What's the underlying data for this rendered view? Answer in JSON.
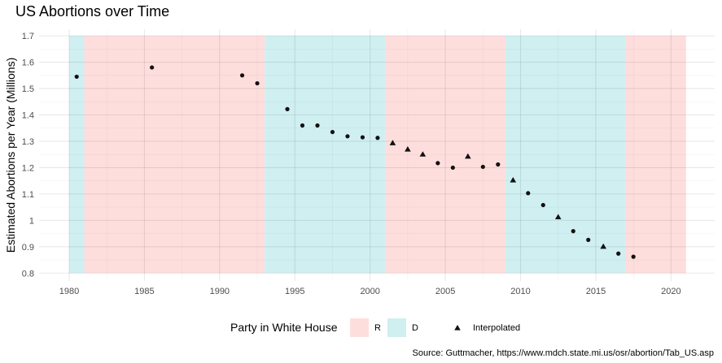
{
  "chart_data": {
    "type": "scatter",
    "title": "US Abortions over Time",
    "xlabel": "",
    "ylabel": "Estimated Abortions per Year (Millions)",
    "caption": "Source: Guttmacher, https://www.mdch.state.mi.us/osr/abortion/Tab_US.asp",
    "xlim": [
      1980,
      2021
    ],
    "ylim": [
      0.8,
      1.7
    ],
    "x_ticks": [
      1980,
      1985,
      1990,
      1995,
      2000,
      2005,
      2010,
      2015,
      2020
    ],
    "y_ticks": [
      0.8,
      0.9,
      1.0,
      1.1,
      1.2,
      1.3,
      1.4,
      1.5,
      1.6,
      1.7
    ],
    "y_tick_labels": [
      "0.8",
      "0.9",
      "1",
      "1.1",
      "1.2",
      "1.3",
      "1.4",
      "1.5",
      "1.6",
      "1.7"
    ],
    "grid": true,
    "legend_position": "bottom",
    "party_periods": [
      {
        "start": 1980,
        "end": 1981,
        "party": "D"
      },
      {
        "start": 1981,
        "end": 1993,
        "party": "R"
      },
      {
        "start": 1993,
        "end": 2001,
        "party": "D"
      },
      {
        "start": 2001,
        "end": 2009,
        "party": "R"
      },
      {
        "start": 2009,
        "end": 2017,
        "party": "D"
      },
      {
        "start": 2017,
        "end": 2021,
        "party": "R"
      }
    ],
    "party_colors": {
      "R": "#fddedd",
      "D": "#d0eff1"
    },
    "series": [
      {
        "marker": "circle",
        "points": [
          {
            "x": 1980.5,
            "y": 1.545
          },
          {
            "x": 1985.5,
            "y": 1.58
          },
          {
            "x": 1991.5,
            "y": 1.55
          },
          {
            "x": 1992.5,
            "y": 1.52
          },
          {
            "x": 1994.5,
            "y": 1.422
          },
          {
            "x": 1995.5,
            "y": 1.36
          },
          {
            "x": 1996.5,
            "y": 1.36
          },
          {
            "x": 1997.5,
            "y": 1.335
          },
          {
            "x": 1998.5,
            "y": 1.319
          },
          {
            "x": 1999.5,
            "y": 1.315
          },
          {
            "x": 2000.5,
            "y": 1.313
          },
          {
            "x": 2004.5,
            "y": 1.217
          },
          {
            "x": 2005.5,
            "y": 1.2
          },
          {
            "x": 2007.5,
            "y": 1.203
          },
          {
            "x": 2008.5,
            "y": 1.212
          },
          {
            "x": 2010.5,
            "y": 1.103
          },
          {
            "x": 2011.5,
            "y": 1.058
          },
          {
            "x": 2013.5,
            "y": 0.959
          },
          {
            "x": 2014.5,
            "y": 0.926
          },
          {
            "x": 2016.5,
            "y": 0.874
          },
          {
            "x": 2017.5,
            "y": 0.862
          }
        ]
      },
      {
        "name": "Interpolated",
        "marker": "triangle",
        "points": [
          {
            "x": 2001.5,
            "y": 1.293
          },
          {
            "x": 2002.5,
            "y": 1.269
          },
          {
            "x": 2003.5,
            "y": 1.25
          },
          {
            "x": 2006.5,
            "y": 1.242
          },
          {
            "x": 2009.5,
            "y": 1.152
          },
          {
            "x": 2012.5,
            "y": 1.012
          },
          {
            "x": 2015.5,
            "y": 0.9
          }
        ]
      }
    ],
    "legend": {
      "title": "Party in White House",
      "entries": [
        {
          "label": "R",
          "color": "#fddedd"
        },
        {
          "label": "D",
          "color": "#d0eff1"
        }
      ],
      "marker_label": "Interpolated"
    }
  }
}
